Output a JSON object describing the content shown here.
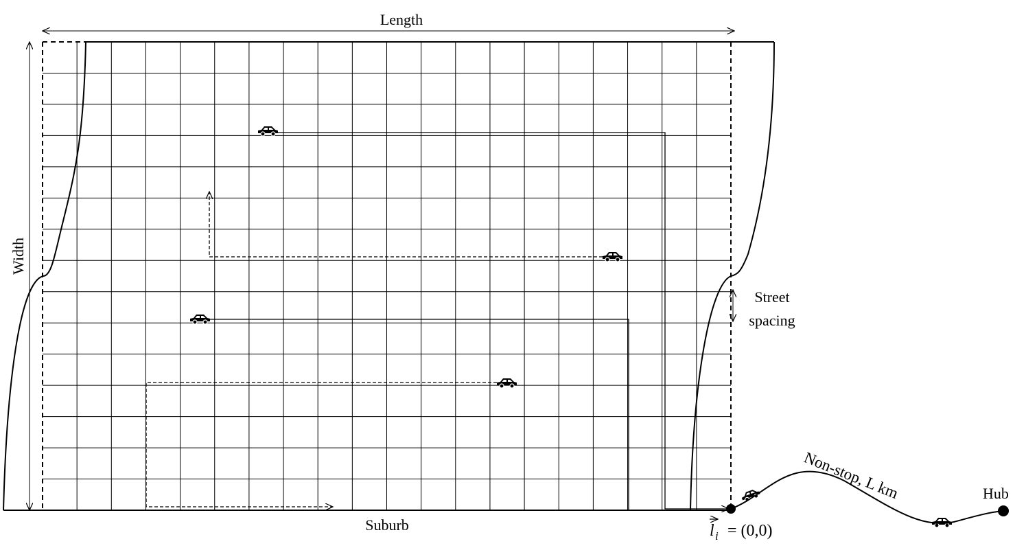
{
  "labels": {
    "length": "Length",
    "width": "Width",
    "street_spacing": [
      "Street",
      "spacing"
    ],
    "suburb": "Suburb",
    "route": "Non-stop, L km",
    "hub": "Hub",
    "origin": {
      "symbol": "l",
      "subscript": "i",
      "rest": "= (0,0)"
    }
  }
}
